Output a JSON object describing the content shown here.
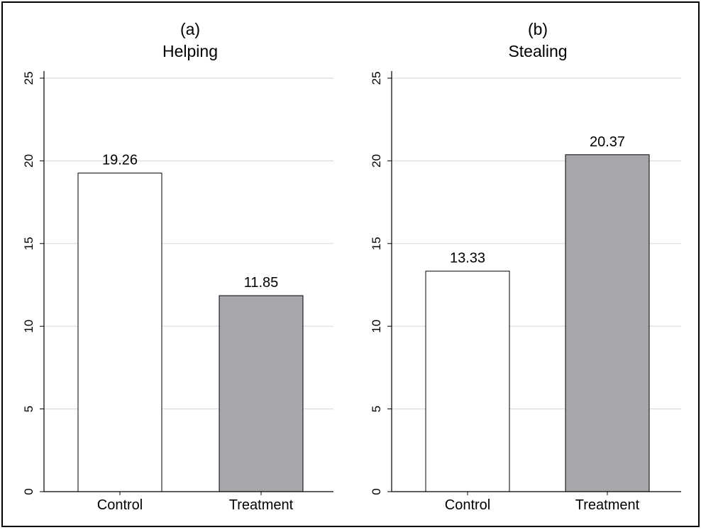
{
  "chart_data": [
    {
      "type": "bar",
      "panel_label": "(a)",
      "title": "Helping",
      "categories": [
        "Control",
        "Treatment"
      ],
      "values": [
        19.26,
        11.85
      ],
      "value_labels": [
        "19.26",
        "11.85"
      ],
      "bar_colors": [
        "#ffffff",
        "#a6a7ab"
      ],
      "yticks": [
        "0",
        "5",
        "10",
        "15",
        "20",
        "25"
      ],
      "ylim": [
        0,
        25
      ],
      "grid": true,
      "xlabel": "",
      "ylabel": ""
    },
    {
      "type": "bar",
      "panel_label": "(b)",
      "title": "Stealing",
      "categories": [
        "Control",
        "Treatment"
      ],
      "values": [
        13.33,
        20.37
      ],
      "value_labels": [
        "13.33",
        "20.37"
      ],
      "bar_colors": [
        "#ffffff",
        "#a6a7ab"
      ],
      "yticks": [
        "0",
        "5",
        "10",
        "15",
        "20",
        "25"
      ],
      "ylim": [
        0,
        25
      ],
      "grid": true,
      "xlabel": "",
      "ylabel": ""
    }
  ],
  "colors": {
    "frame": "#000000",
    "gridline": "#dcdcdc",
    "bar_edge": "#000000"
  }
}
